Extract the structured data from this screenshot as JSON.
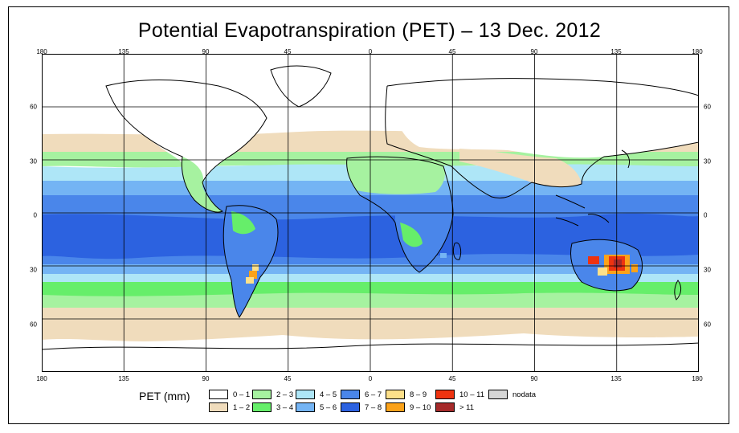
{
  "title": "Potential Evapotranspiration (PET) – 13 Dec. 2012",
  "axes": {
    "longitude_ticks": [
      "180",
      "135",
      "90",
      "45",
      "0",
      "45",
      "90",
      "135",
      "180"
    ],
    "latitude_ticks": [
      "60",
      "30",
      "0",
      "30",
      "60"
    ]
  },
  "map": {
    "lon_range": [
      -180,
      180
    ],
    "lat_range": [
      -90,
      90
    ],
    "gridline_lon": [
      -135,
      -90,
      -45,
      0,
      45,
      90,
      135
    ],
    "gridline_lat": [
      60,
      30,
      0,
      -30,
      -60
    ]
  },
  "legend": {
    "title": "PET (mm)",
    "classes": [
      {
        "label": "0 – 1",
        "color": "#ffffff"
      },
      {
        "label": "1 – 2",
        "color": "#f0dcbc"
      },
      {
        "label": "2 – 3",
        "color": "#a6f2a0"
      },
      {
        "label": "3 – 4",
        "color": "#66ee6a"
      },
      {
        "label": "4 – 5",
        "color": "#aee6f7"
      },
      {
        "label": "5 – 6",
        "color": "#74b4f4"
      },
      {
        "label": "6 – 7",
        "color": "#4a86ea"
      },
      {
        "label": "7 – 8",
        "color": "#2c62e0"
      },
      {
        "label": "8 – 9",
        "color": "#fde08a"
      },
      {
        "label": "9 – 10",
        "color": "#fba21a"
      },
      {
        "label": "10 – 11",
        "color": "#ee3310"
      },
      {
        "label": "> 11",
        "color": "#a52a2a"
      },
      {
        "label": "nodata",
        "color": "#d6d6d6"
      }
    ]
  }
}
